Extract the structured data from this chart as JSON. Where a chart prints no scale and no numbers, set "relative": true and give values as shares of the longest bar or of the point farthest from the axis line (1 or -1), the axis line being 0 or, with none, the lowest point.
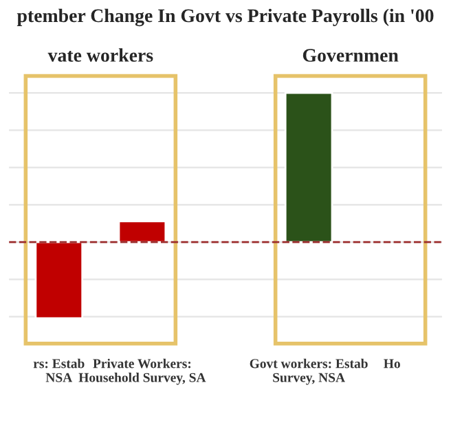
{
  "chart_data": {
    "type": "bar",
    "title": "ptember Change In Govt vs Private Payrolls (in '00",
    "annotations": [
      "vate workers",
      "Governmen"
    ],
    "categories": [
      "rs: Estab\nNSA",
      "Private Workers:\nHousehold Survey, SA",
      null,
      "Govt workers: Estab\nSurvey, NSA",
      "Ho"
    ],
    "values": [
      -0.51,
      0.14,
      null,
      1,
      null
    ],
    "colors": [
      "#c00000",
      "#c00000",
      "#c00000",
      "#2b5219",
      "#2b5219"
    ],
    "relative": true,
    "grid": "y",
    "ref_lines": [
      {
        "axis": "y",
        "value": 0,
        "color": "#9b2b2b",
        "line_style": "dashed"
      }
    ]
  }
}
